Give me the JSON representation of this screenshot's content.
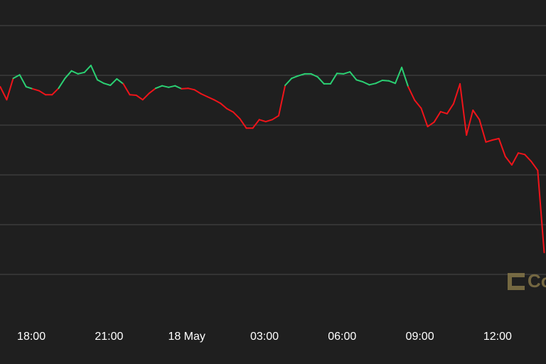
{
  "chart_data": {
    "type": "line",
    "baseline": 4.74,
    "colors": {
      "up": "#2bd073",
      "down": "#f0141a"
    },
    "grid": true,
    "watermark": "Co",
    "xlim": [
      16.79,
      37.87
    ],
    "ylim": [
      0,
      6.5
    ],
    "yticks": [
      1,
      2,
      3,
      4,
      5,
      6
    ],
    "xticks": [
      {
        "value": 18,
        "label": "18:00"
      },
      {
        "value": 21,
        "label": "21:00"
      },
      {
        "value": 24,
        "label": "18 May"
      },
      {
        "value": 27,
        "label": "03:00"
      },
      {
        "value": 30,
        "label": "06:00"
      },
      {
        "value": 33,
        "label": "09:00"
      },
      {
        "value": 36,
        "label": "12:00"
      }
    ],
    "x": [
      16.8,
      17.05,
      17.3,
      17.55,
      17.8,
      18.05,
      18.3,
      18.55,
      18.8,
      19.05,
      19.3,
      19.55,
      19.8,
      20.05,
      20.3,
      20.55,
      20.8,
      21.05,
      21.3,
      21.55,
      21.8,
      22.05,
      22.3,
      22.55,
      22.8,
      23.05,
      23.3,
      23.55,
      23.8,
      24.05,
      24.3,
      24.55,
      24.8,
      25.05,
      25.3,
      25.55,
      25.8,
      26.05,
      26.3,
      26.55,
      26.8,
      27.05,
      27.3,
      27.55,
      27.8,
      28.05,
      28.3,
      28.55,
      28.8,
      29.05,
      29.3,
      29.55,
      29.8,
      30.05,
      30.3,
      30.55,
      30.8,
      31.05,
      31.3,
      31.55,
      31.8,
      32.05,
      32.3,
      32.55,
      32.8,
      33.05,
      33.3,
      33.55,
      33.8,
      34.05,
      34.3,
      34.55,
      34.8,
      35.05,
      35.3,
      35.55,
      35.8,
      36.05,
      36.3,
      36.55,
      36.8,
      37.05,
      37.3,
      37.55,
      37.8
    ],
    "values": [
      4.77,
      4.51,
      4.94,
      5.01,
      4.77,
      4.73,
      4.69,
      4.61,
      4.61,
      4.74,
      4.94,
      5.09,
      5.03,
      5.06,
      5.2,
      4.91,
      4.84,
      4.8,
      4.93,
      4.83,
      4.61,
      4.6,
      4.51,
      4.64,
      4.74,
      4.79,
      4.76,
      4.79,
      4.73,
      4.74,
      4.71,
      4.63,
      4.57,
      4.51,
      4.44,
      4.33,
      4.26,
      4.13,
      3.94,
      3.94,
      4.11,
      4.07,
      4.11,
      4.19,
      4.8,
      4.94,
      4.99,
      5.03,
      5.03,
      4.97,
      4.83,
      4.83,
      5.04,
      5.03,
      5.07,
      4.91,
      4.87,
      4.81,
      4.84,
      4.9,
      4.89,
      4.84,
      5.16,
      4.77,
      4.5,
      4.34,
      3.97,
      4.06,
      4.27,
      4.23,
      4.43,
      4.83,
      3.8,
      4.3,
      4.11,
      3.66,
      3.7,
      3.73,
      3.37,
      3.2,
      3.44,
      3.41,
      3.27,
      3.09,
      1.44
    ]
  }
}
